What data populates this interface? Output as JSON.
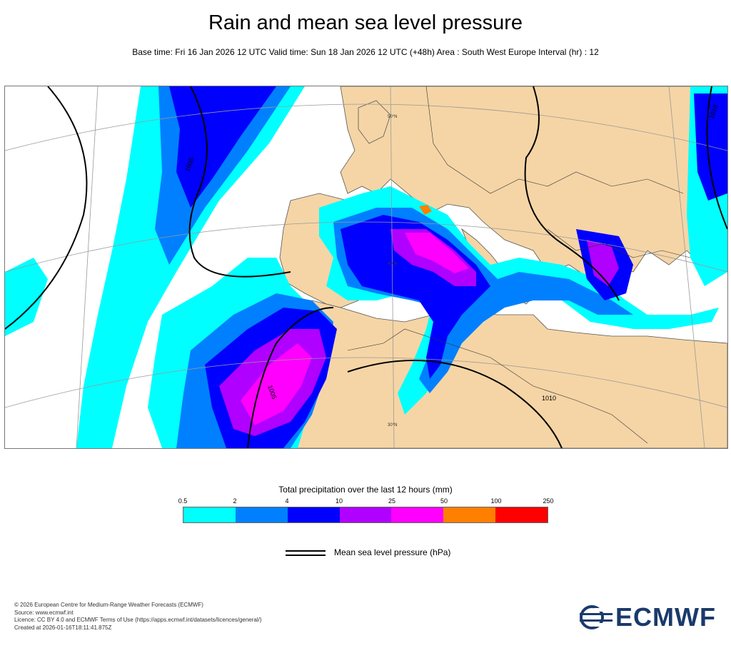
{
  "header": {
    "title": "Rain and mean sea level pressure",
    "subtitle": "Base time: Fri 16 Jan 2026 12 UTC Valid time: Sun 18 Jan 2026 12 UTC (+48h) Area : South West Europe Interval (hr) : 12"
  },
  "map": {
    "area": "South West Europe",
    "isobar_labels": [
      "1005",
      "1010",
      "1005",
      "1010",
      "1005"
    ],
    "lat_labels": [
      "50°N",
      "40°N",
      "30°N"
    ],
    "colors": {
      "land": "#f5d5a6",
      "sea": "#ffffff",
      "isobar": "#000000",
      "border": "#333333",
      "graticule": "#999999"
    }
  },
  "legend": {
    "title": "Total precipitation over the last 12 hours (mm)",
    "ticks": [
      "0.5",
      "2",
      "4",
      "10",
      "25",
      "50",
      "100",
      "250"
    ],
    "colors": [
      "#00ffff",
      "#0080ff",
      "#0000ff",
      "#b000ff",
      "#ff00ff",
      "#ff8000",
      "#ff0000"
    ]
  },
  "pressure_legend": {
    "label": "Mean sea level pressure (hPa)"
  },
  "footer": {
    "lines": [
      "© 2026 European Centre for Medium-Range Weather Forecasts (ECMWF)",
      "Source: www.ecmwf.int",
      "Licence: CC BY 4.0 and ECMWF Terms of Use (https://apps.ecmwf.int/datasets/licences/general/)",
      "Created at 2026-01-16T18:11:41.875Z"
    ]
  },
  "logo": {
    "text": "ECMWF",
    "color": "#1a3a6b"
  }
}
